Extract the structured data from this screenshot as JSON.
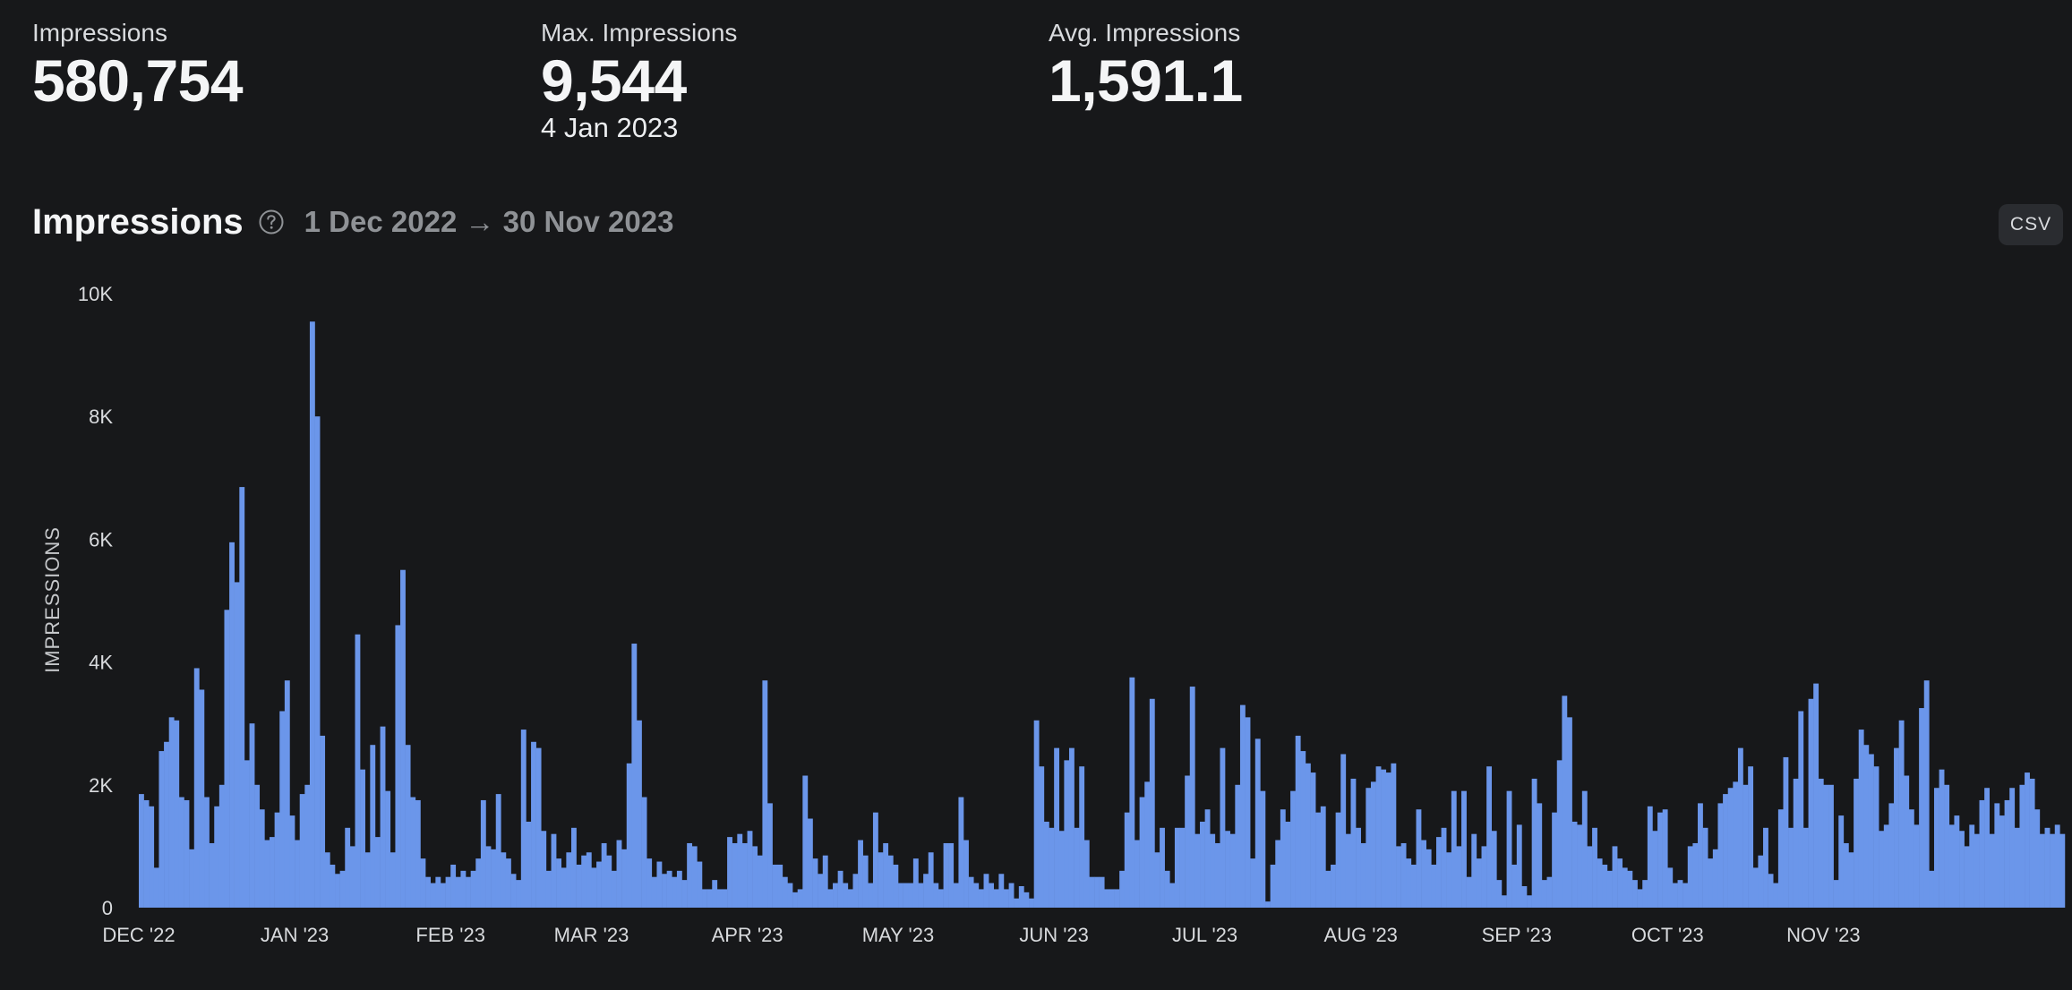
{
  "stats": {
    "total": {
      "label": "Impressions",
      "value": "580,754"
    },
    "max": {
      "label": "Max. Impressions",
      "value": "9,544",
      "date": "4 Jan 2023"
    },
    "avg": {
      "label": "Avg. Impressions",
      "value": "1,591.1"
    }
  },
  "chart_header": {
    "title": "Impressions",
    "range": "1 Dec 2022 → 30 Nov 2023",
    "csv_label": "CSV"
  },
  "colors": {
    "background": "#17181a",
    "bar": "#6b96ea",
    "muted_text": "#8f9296"
  },
  "icons": {
    "help": "question-circle-icon"
  },
  "chart_data": {
    "type": "bar",
    "title": "Impressions",
    "ylabel": "IMPRESSIONS",
    "xlabel": "",
    "ylim": [
      0,
      10000
    ],
    "y_ticks": [
      {
        "value": 0,
        "label": "0"
      },
      {
        "value": 2000,
        "label": "2K"
      },
      {
        "value": 4000,
        "label": "4K"
      },
      {
        "value": 6000,
        "label": "6K"
      },
      {
        "value": 8000,
        "label": "8K"
      },
      {
        "value": 10000,
        "label": "10K"
      }
    ],
    "x_ticks": [
      {
        "index": 0,
        "label": "DEC '22"
      },
      {
        "index": 31,
        "label": "JAN '23"
      },
      {
        "index": 62,
        "label": "FEB '23"
      },
      {
        "index": 90,
        "label": "MAR '23"
      },
      {
        "index": 121,
        "label": "APR '23"
      },
      {
        "index": 151,
        "label": "MAY '23"
      },
      {
        "index": 182,
        "label": "JUN '23"
      },
      {
        "index": 212,
        "label": "JUL '23"
      },
      {
        "index": 243,
        "label": "AUG '23"
      },
      {
        "index": 274,
        "label": "SEP '23"
      },
      {
        "index": 304,
        "label": "OCT '23"
      },
      {
        "index": 335,
        "label": "NOV '23"
      }
    ],
    "start_date": "1 Dec 2022",
    "end_date": "30 Nov 2023",
    "values": [
      1850,
      1750,
      1650,
      650,
      2550,
      2700,
      3100,
      3050,
      1800,
      1750,
      950,
      3900,
      3550,
      1800,
      1050,
      1650,
      2000,
      4850,
      5950,
      5300,
      6850,
      2400,
      3000,
      2000,
      1600,
      1100,
      1150,
      1550,
      3200,
      3700,
      1500,
      1100,
      1850,
      2000,
      9544,
      8000,
      2800,
      900,
      700,
      550,
      600,
      1300,
      1000,
      4450,
      2250,
      900,
      2650,
      1150,
      2950,
      1900,
      900,
      4600,
      5500,
      2650,
      1800,
      1750,
      800,
      500,
      400,
      500,
      400,
      500,
      700,
      500,
      600,
      500,
      600,
      800,
      1750,
      1000,
      950,
      1850,
      900,
      800,
      550,
      450,
      2900,
      1400,
      2700,
      2600,
      1250,
      600,
      1200,
      800,
      650,
      900,
      1300,
      700,
      850,
      900,
      650,
      750,
      1050,
      850,
      600,
      1100,
      950,
      2350,
      4300,
      3050,
      1800,
      800,
      500,
      750,
      550,
      600,
      500,
      600,
      450,
      1050,
      1000,
      750,
      300,
      300,
      450,
      300,
      300,
      1150,
      1050,
      1200,
      1050,
      1250,
      1000,
      850,
      3700,
      1700,
      700,
      700,
      500,
      400,
      250,
      300,
      2150,
      1450,
      800,
      550,
      850,
      300,
      400,
      600,
      400,
      300,
      550,
      1100,
      850,
      400,
      1550,
      900,
      1050,
      850,
      700,
      400,
      400,
      400,
      800,
      400,
      550,
      900,
      400,
      300,
      1050,
      1050,
      400,
      1800,
      1100,
      500,
      400,
      300,
      550,
      400,
      300,
      550,
      300,
      400,
      150,
      350,
      250,
      150,
      3050,
      2300,
      1400,
      1300,
      2600,
      1250,
      2400,
      2600,
      1300,
      2300,
      1100,
      500,
      500,
      500,
      300,
      300,
      300,
      600,
      1550,
      3750,
      1100,
      1800,
      2050,
      3400,
      900,
      1300,
      600,
      400,
      1300,
      1300,
      2150,
      3600,
      1200,
      1400,
      1600,
      1200,
      1050,
      2600,
      1250,
      1200,
      2000,
      3300,
      3100,
      800,
      2750,
      1900,
      100,
      700,
      1100,
      1600,
      1400,
      1900,
      2800,
      2550,
      2350,
      2200,
      1550,
      1650,
      600,
      700,
      1550,
      2500,
      1200,
      2100,
      1300,
      1050,
      1950,
      2050,
      2300,
      2250,
      2200,
      2350,
      1000,
      1050,
      800,
      700,
      1600,
      1100,
      950,
      700,
      1150,
      1300,
      900,
      1900,
      1000,
      1900,
      500,
      1200,
      800,
      1000,
      2300,
      1250,
      450,
      200,
      1900,
      700,
      1350,
      350,
      200,
      2100,
      1700,
      450,
      500,
      1550,
      2400,
      3450,
      3100,
      1400,
      1350,
      1900,
      1000,
      1300,
      800,
      700,
      600,
      1000,
      800,
      650,
      600,
      450,
      300,
      450,
      1650,
      1250,
      1550,
      1600,
      650,
      400,
      450,
      400,
      1000,
      1050,
      1700,
      1300,
      800,
      950,
      1700,
      1850,
      1950,
      2050,
      2600,
      2000,
      2300,
      650,
      850,
      1300,
      550,
      400,
      1600,
      2450,
      1300,
      2100,
      3200,
      1300,
      3400,
      3650,
      2100,
      2000,
      2000,
      450,
      1500,
      1050,
      900,
      2100,
      2900,
      2650,
      2500,
      2300,
      1250,
      1350,
      1700,
      2600,
      3050,
      2150,
      1600,
      1350,
      3250,
      3700,
      600,
      1950,
      2250,
      2000,
      1350,
      1500,
      1250,
      1000,
      1350,
      1200,
      1750,
      1950,
      1200,
      1700,
      1500,
      1750,
      1950,
      1300,
      2000,
      2200,
      2100,
      1600,
      1200,
      1300,
      1200,
      1350,
      1200
    ]
  }
}
